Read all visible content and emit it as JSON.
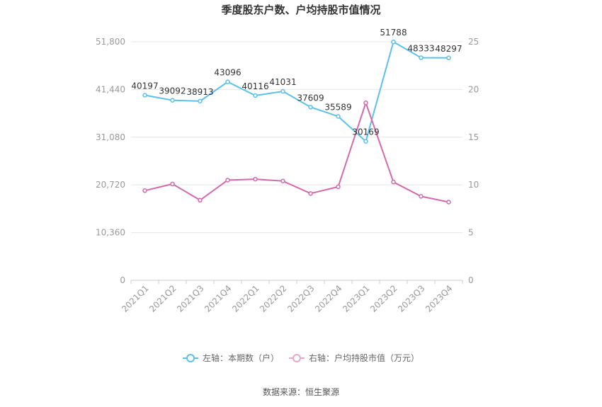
{
  "chart_data": {
    "type": "line",
    "title": "季度股东户数、户均持股市值情况",
    "categories": [
      "2021Q1",
      "2021Q2",
      "2021Q3",
      "2021Q4",
      "2022Q1",
      "2022Q2",
      "2022Q3",
      "2022Q4",
      "2023Q1",
      "2023Q2",
      "2023Q3",
      "2023Q4"
    ],
    "y_left": {
      "min": 0,
      "max": 51800,
      "ticks": [
        "0",
        "10,360",
        "20,720",
        "31,080",
        "41,440",
        "51,800"
      ]
    },
    "y_right": {
      "min": 0,
      "max": 25,
      "ticks": [
        "0",
        "5",
        "10",
        "15",
        "20",
        "25"
      ]
    },
    "series": [
      {
        "name": "左轴：本期数（户）",
        "axis": "left",
        "color": "#5bc0eb",
        "values": [
          40197,
          39092,
          38913,
          43096,
          40116,
          41031,
          37609,
          35589,
          30169,
          51788,
          48333,
          48297
        ],
        "labels": [
          "40197",
          "39092",
          "38913",
          "43096",
          "40116",
          "41031",
          "37609",
          "35589",
          "30169",
          "51788",
          "48333",
          "48297"
        ]
      },
      {
        "name": "右轴：户均持股市值（万元）",
        "axis": "right",
        "color": "#d46aab",
        "values": [
          9.4,
          10.1,
          8.4,
          10.5,
          10.6,
          10.4,
          9.1,
          9.8,
          18.6,
          10.3,
          8.8,
          8.2
        ]
      }
    ],
    "grid": true,
    "legend_position": "bottom"
  },
  "source": "数据来源：恒生聚源"
}
